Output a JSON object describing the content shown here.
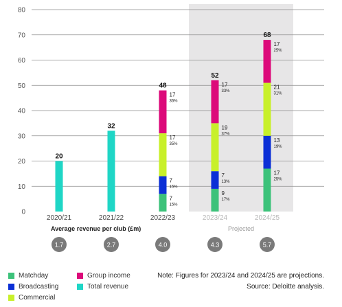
{
  "chart_data": {
    "type": "bar",
    "ylim": [
      0,
      80
    ],
    "yticks": [
      "0",
      "10",
      "20",
      "30",
      "40",
      "50",
      "60",
      "70",
      "80"
    ],
    "categories": [
      "2020/21",
      "2021/22",
      "2022/23",
      "2023/24",
      "2024/25"
    ],
    "projected_label": "Projected",
    "avg_label": "Average revenue per club (£m)",
    "avg_values": [
      "1.7",
      "2.7",
      "4.0",
      "4.3",
      "5.7"
    ],
    "totals": [
      "20",
      "32",
      "48",
      "52",
      "68"
    ],
    "series": [
      {
        "name": "Total revenue",
        "values": [
          20,
          32,
          null,
          null,
          null
        ]
      },
      {
        "name": "Matchday",
        "values": [
          null,
          null,
          7,
          9,
          17
        ],
        "labels": [
          "",
          "",
          "7",
          "9",
          "17"
        ],
        "pct": [
          "",
          "",
          "15%",
          "17%",
          "25%"
        ]
      },
      {
        "name": "Broadcasting",
        "values": [
          null,
          null,
          7,
          7,
          13
        ],
        "labels": [
          "",
          "",
          "7",
          "7",
          "13"
        ],
        "pct": [
          "",
          "",
          "15%",
          "13%",
          "19%"
        ]
      },
      {
        "name": "Commercial",
        "values": [
          null,
          null,
          17,
          19,
          21
        ],
        "labels": [
          "",
          "",
          "17",
          "19",
          "21"
        ],
        "pct": [
          "",
          "",
          "35%",
          "37%",
          "31%"
        ]
      },
      {
        "name": "Group income",
        "values": [
          null,
          null,
          17,
          17,
          17
        ],
        "labels": [
          "",
          "",
          "17",
          "17",
          "17"
        ],
        "pct": [
          "",
          "",
          "36%",
          "33%",
          "25%"
        ]
      }
    ],
    "colors": {
      "Matchday": "#3cc27a",
      "Broadcasting": "#0b2fd6",
      "Commercial": "#c8f02a",
      "Group income": "#dc0a7a",
      "Total revenue": "#1fd6c6",
      "projected_bg": "#e7e6e7",
      "circle": "#7a7a7a"
    }
  },
  "legend": [
    {
      "label": "Matchday",
      "color": "#3cc27a"
    },
    {
      "label": "Group income",
      "color": "#dc0a7a"
    },
    {
      "label": "Broadcasting",
      "color": "#0b2fd6"
    },
    {
      "label": "Total revenue",
      "color": "#1fd6c6"
    },
    {
      "label": "Commercial",
      "color": "#c8f02a"
    }
  ],
  "notes": {
    "line1": "Note: Figures for 2023/24 and 2024/25 are projections.",
    "line2": "Source: Deloitte analysis."
  }
}
